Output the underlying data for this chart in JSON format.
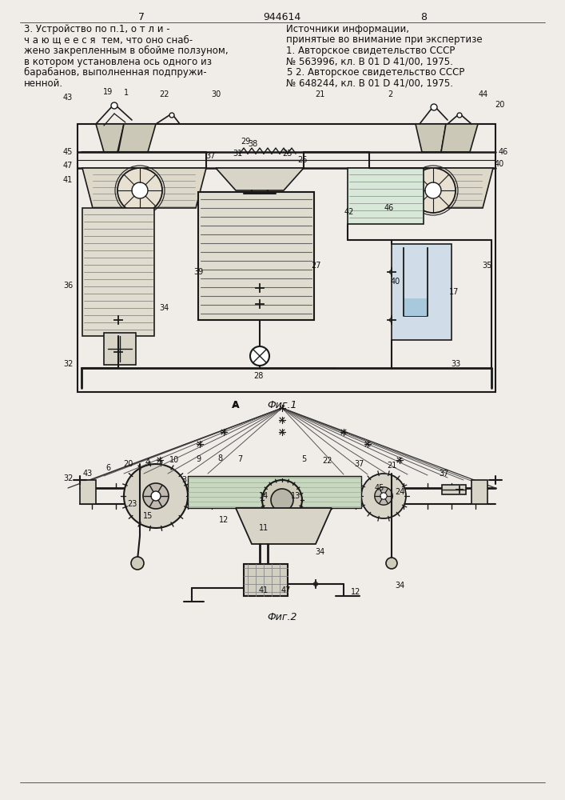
{
  "page_width": 7.07,
  "page_height": 10.0,
  "bg": "#f0ede8",
  "lc": "#1a1a1a",
  "page_num_left": "7",
  "page_num_center": "944614",
  "page_num_right": "8",
  "left_text": [
    "3. Устройство по п.1, о т л и -",
    "ч а ю щ е е с я  тем, что оно снаб-",
    "жено закрепленным в обойме ползуном,",
    "в котором установлена ось одного из",
    "барабанов, выполненная подпружи-",
    "ненной."
  ],
  "right_text": [
    "Источники информации,",
    "принятые во внимание при экспертизе",
    "1. Авторское свидетельство СССР",
    "№ 563996, кл. В 01 D 41/00, 1975.",
    "2. Авторское свидетельство СССР",
    "№ 648244, кл. В 01 D 41/00, 1975."
  ],
  "fig1_label": "Фиг.1",
  "fig2_label": "Фиг.2"
}
